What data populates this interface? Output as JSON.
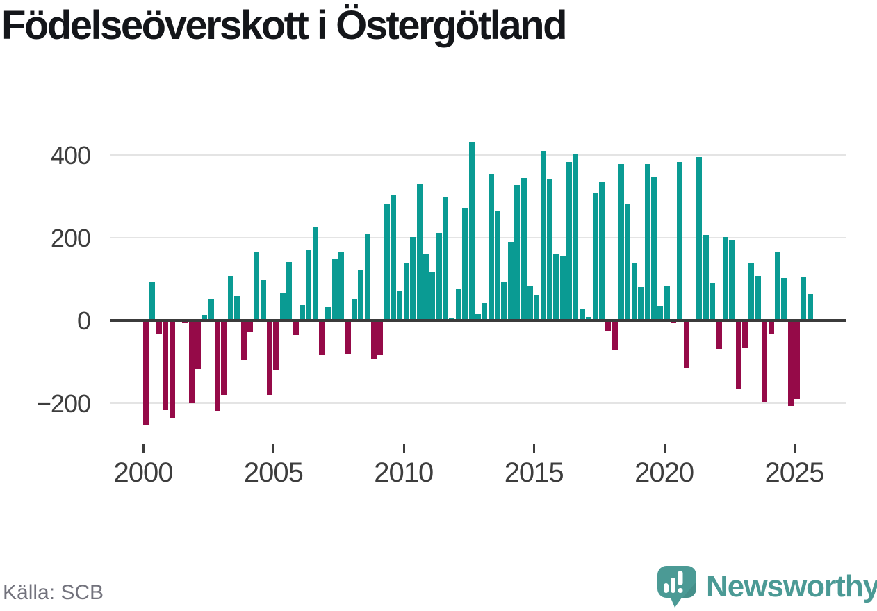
{
  "title": "Födelseöverskott i Östergötland",
  "footer": {
    "source": "Källa: SCB"
  },
  "branding": {
    "wordmark": "Newsworthy",
    "icon": "newsworthy-speech-bubble-chart-icon"
  },
  "colors": {
    "positive_bar": "#0a9b93",
    "negative_bar": "#950a48",
    "zero_line": "#3b3b3b",
    "gridline": "#e4e4e4",
    "axis_text": "#3d3d3d",
    "title_text": "#14161a",
    "source_text": "#72727c",
    "brand_teal": "#4b9a95"
  },
  "chart_data": {
    "type": "bar",
    "title": "Födelseöverskott i Östergötland",
    "frequency": "quarterly",
    "start_period": "2000-Q1",
    "end_period": "2025-Q3",
    "xlabel": "",
    "ylabel": "",
    "grid": "horizontal",
    "legend": "none",
    "ylim": [
      -260,
      450
    ],
    "xticks": [
      "2000",
      "2005",
      "2010",
      "2015",
      "2020",
      "2025"
    ],
    "yticks": [
      {
        "label": "400",
        "value": 400
      },
      {
        "label": "200",
        "value": 200
      },
      {
        "label": "0",
        "value": 0
      },
      {
        "label": "−200",
        "value": -200
      }
    ],
    "series": [
      {
        "name": "Födelseöverskott",
        "values": [
          -253,
          94,
          -33,
          -217,
          -236,
          4,
          -6,
          -200,
          -118,
          13,
          52,
          -219,
          -180,
          107,
          59,
          -96,
          -26,
          167,
          97,
          -179,
          -121,
          68,
          142,
          -36,
          37,
          170,
          227,
          -84,
          34,
          148,
          167,
          -81,
          52,
          123,
          208,
          -94,
          -82,
          282,
          304,
          73,
          138,
          202,
          332,
          159,
          118,
          212,
          299,
          6,
          76,
          273,
          430,
          15,
          42,
          354,
          265,
          93,
          190,
          327,
          344,
          82,
          60,
          410,
          342,
          160,
          155,
          383,
          403,
          29,
          8,
          308,
          335,
          -25,
          -71,
          379,
          280,
          139,
          80,
          379,
          346,
          35,
          84,
          -7,
          383,
          -115,
          3,
          395,
          206,
          90,
          -69,
          201,
          195,
          -165,
          -66,
          139,
          108,
          -197,
          -32,
          164,
          102,
          -206,
          -189,
          104,
          64
        ]
      }
    ]
  }
}
